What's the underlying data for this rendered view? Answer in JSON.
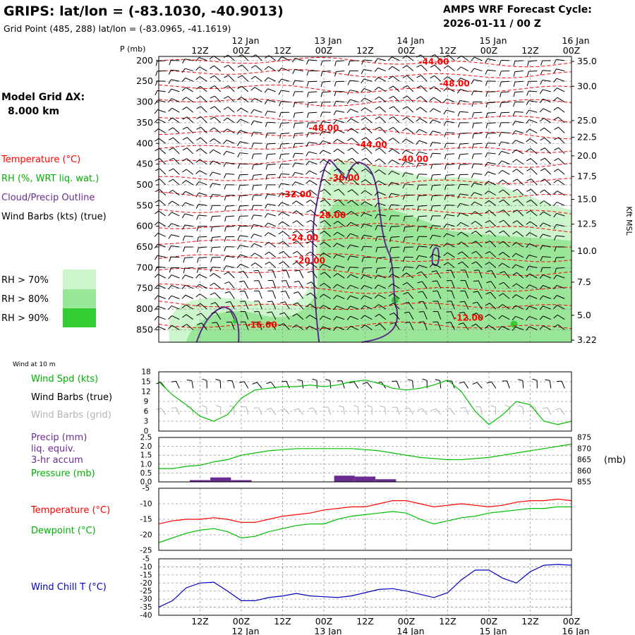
{
  "header": {
    "title": "GRIPS:  lat/lon = (-83.1030, -40.9013)",
    "subtitle": "Grid Point (485, 288) lat/lon = (-83.0965, -41.1619)",
    "forecast_label": "AMPS WRF Forecast Cycle:",
    "forecast_cycle": "2026-01-11 / 00  Z"
  },
  "model_grid": {
    "label": "Model Grid ΔX:",
    "value": "8.000 km"
  },
  "time_axis": {
    "ticks": [
      {
        "t": 18,
        "hour": "12Z",
        "day": ""
      },
      {
        "t": 24,
        "hour": "00Z",
        "day": "12 Jan"
      },
      {
        "t": 30,
        "hour": "12Z",
        "day": ""
      },
      {
        "t": 36,
        "hour": "00Z",
        "day": "13 Jan"
      },
      {
        "t": 42,
        "hour": "12Z",
        "day": ""
      },
      {
        "t": 48,
        "hour": "00Z",
        "day": "14 Jan"
      },
      {
        "t": 54,
        "hour": "12Z",
        "day": ""
      },
      {
        "t": 60,
        "hour": "00Z",
        "day": "15 Jan"
      },
      {
        "t": 66,
        "hour": "12Z",
        "day": ""
      },
      {
        "t": 72,
        "hour": "00Z",
        "day": "16 Jan"
      }
    ],
    "range": [
      12,
      72
    ]
  },
  "legend": {
    "temperature": "Temperature (°C)",
    "rh": "RH (%, WRT liq. wat.)",
    "cloud": "Cloud/Precip Outline",
    "wind_barbs": "Wind Barbs (kts) (true)",
    "rh_bins": [
      {
        "label": "RH > 70%",
        "color": "#ccf5cc"
      },
      {
        "label": "RH > 80%",
        "color": "#99e699"
      },
      {
        "label": "RH > 90%",
        "color": "#33cc33"
      }
    ]
  },
  "colors": {
    "temperature": "#ff0000",
    "dewpoint": "#00c000",
    "windspeed": "#00c000",
    "pressure": "#00c000",
    "precip": "#6a2c91",
    "cloud": "#5a2d8c",
    "windchill": "#0000c0",
    "grid_barbs": "#b4b4b4"
  },
  "chart_data": [
    {
      "type": "heatmap",
      "title": "Vertical cross-section",
      "ylabel": "P (mb)",
      "yticks": [
        200,
        250,
        300,
        350,
        400,
        450,
        500,
        550,
        600,
        650,
        700,
        750,
        800,
        850
      ],
      "ylim": [
        880,
        190
      ],
      "right_axis_label": "Kft MSL",
      "right_ticks": [
        {
          "label": "35.0",
          "p": 202
        },
        {
          "label": "30.0",
          "p": 262
        },
        {
          "label": "25.0",
          "p": 345
        },
        {
          "label": "22.5",
          "p": 385
        },
        {
          "label": "20.0",
          "p": 430
        },
        {
          "label": "17.5",
          "p": 480
        },
        {
          "label": "15.0",
          "p": 535
        },
        {
          "label": "12.5",
          "p": 595
        },
        {
          "label": "10.0",
          "p": 660
        },
        {
          "label": "7.5",
          "p": 735
        },
        {
          "label": "5.0",
          "p": 815
        },
        {
          "label": "3.22",
          "p": 875
        }
      ],
      "temperature_labels": [
        {
          "text": "-44.00",
          "t": 52,
          "p": 210
        },
        {
          "text": "-48.00",
          "t": 55,
          "p": 262
        },
        {
          "text": "-48.00",
          "t": 36,
          "p": 370
        },
        {
          "text": "-44.00",
          "t": 43,
          "p": 410
        },
        {
          "text": "-40.00",
          "t": 49,
          "p": 445
        },
        {
          "text": "-36.00",
          "t": 39,
          "p": 490
        },
        {
          "text": "-32.00",
          "t": 32,
          "p": 530
        },
        {
          "text": "-28.00",
          "t": 37,
          "p": 580
        },
        {
          "text": "-24.00",
          "t": 33,
          "p": 635
        },
        {
          "text": "-20.00",
          "t": 34,
          "p": 690
        },
        {
          "text": "-16.00",
          "t": 27,
          "p": 845
        },
        {
          "text": "-12.00",
          "t": 57,
          "p": 828
        }
      ],
      "isotherm_levels": [
        203,
        232,
        268,
        300,
        338,
        375,
        410,
        448,
        490,
        528,
        565,
        602,
        638,
        676,
        712,
        752,
        792,
        840
      ]
    },
    {
      "type": "line",
      "title": "Wind Spd (kts)",
      "note": "Wind at 10 m",
      "ylim": [
        0,
        18
      ],
      "yticks": [
        0,
        3,
        6,
        9,
        12,
        15,
        18
      ],
      "series": [
        {
          "name": "Wind Spd (kts)",
          "x": [
            12,
            14,
            16,
            18,
            20,
            22,
            24,
            26,
            28,
            30,
            32,
            34,
            36,
            38,
            40,
            42,
            44,
            46,
            48,
            50,
            52,
            54,
            56,
            58,
            60,
            62,
            64,
            66,
            68,
            70,
            72
          ],
          "values": [
            15,
            11,
            8,
            4.5,
            3,
            5,
            10,
            12.5,
            13,
            13.5,
            13.5,
            14,
            13.5,
            14,
            15,
            15.5,
            14.5,
            13,
            12.5,
            13,
            14,
            15.5,
            12,
            6,
            2,
            5,
            9,
            8,
            3,
            2,
            3
          ]
        }
      ],
      "labels": [
        "Wind Spd (kts)",
        "Wind Barbs (true)",
        "Wind Barbs (grid)"
      ]
    },
    {
      "type": "bar",
      "title": "Precip (mm) / Pressure (mb)",
      "labels": [
        "Precip (mm)",
        "liq. equiv.",
        "3-hr accum",
        "Pressure (mb)"
      ],
      "ylim_left": [
        0,
        2.5
      ],
      "yticks_left": [
        "0.0",
        "0.5",
        "1.0",
        "1.5",
        "2.0",
        "2.5"
      ],
      "ylim_right": [
        855,
        875
      ],
      "yticks_right": [
        "855",
        "860",
        "865",
        "870",
        "875"
      ],
      "right_unit": "(mb)",
      "precip": {
        "x": [
          18,
          21,
          24,
          39,
          42,
          45
        ],
        "values": [
          0.1,
          0.25,
          0.1,
          0.35,
          0.3,
          0.15
        ]
      },
      "pressure": {
        "x": [
          12,
          14,
          16,
          18,
          20,
          22,
          24,
          26,
          28,
          30,
          32,
          34,
          36,
          38,
          40,
          42,
          44,
          46,
          48,
          50,
          52,
          54,
          56,
          58,
          60,
          62,
          64,
          66,
          68,
          70,
          72
        ],
        "values": [
          861,
          861,
          862,
          862.5,
          864,
          865,
          867,
          868,
          869,
          869.5,
          870,
          870,
          870,
          870,
          870,
          869.5,
          869,
          868,
          867,
          866,
          865.5,
          865,
          865,
          865.5,
          866,
          867,
          868,
          869,
          870,
          871,
          872
        ]
      }
    },
    {
      "type": "line",
      "title": "Temperature / Dewpoint (°C)",
      "ylim": [
        -25,
        -5
      ],
      "yticks": [
        "-5",
        "-10",
        "-15",
        "-20",
        "-25"
      ],
      "series": [
        {
          "name": "Temperature (°C)",
          "x": [
            12,
            14,
            16,
            18,
            20,
            22,
            24,
            26,
            28,
            30,
            32,
            34,
            36,
            38,
            40,
            42,
            44,
            46,
            48,
            50,
            52,
            54,
            56,
            58,
            60,
            62,
            64,
            66,
            68,
            70,
            72
          ],
          "values": [
            -16.5,
            -15.5,
            -15,
            -15,
            -14.5,
            -15,
            -16,
            -16,
            -15,
            -14,
            -13.5,
            -13,
            -12,
            -11.5,
            -11,
            -11,
            -10,
            -9,
            -9,
            -10,
            -11,
            -10.5,
            -10,
            -10.5,
            -11,
            -10.5,
            -9.5,
            -9,
            -9,
            -8.5,
            -9
          ]
        },
        {
          "name": "Dewpoint (°C)",
          "x": [
            12,
            14,
            16,
            18,
            20,
            22,
            24,
            26,
            28,
            30,
            32,
            34,
            36,
            38,
            40,
            42,
            44,
            46,
            48,
            50,
            52,
            54,
            56,
            58,
            60,
            62,
            64,
            66,
            68,
            70,
            72
          ],
          "values": [
            -22.5,
            -21,
            -19.5,
            -18.5,
            -18,
            -19,
            -21,
            -20.5,
            -19,
            -18,
            -17,
            -16.5,
            -16.5,
            -15,
            -14,
            -13.5,
            -13,
            -12.5,
            -13,
            -15,
            -16.5,
            -15.5,
            -14.5,
            -14,
            -13,
            -12.5,
            -12,
            -11.5,
            -11.5,
            -11,
            -11
          ]
        }
      ],
      "labels": [
        "Temperature (°C)",
        "Dewpoint (°C)"
      ]
    },
    {
      "type": "line",
      "title": "Wind Chill T (°C)",
      "ylim": [
        -40,
        -5
      ],
      "yticks": [
        "-5",
        "-10",
        "-15",
        "-20",
        "-25",
        "-30",
        "-35",
        "-40"
      ],
      "series": [
        {
          "name": "Wind Chill T (°C)",
          "x": [
            12,
            14,
            16,
            18,
            20,
            22,
            24,
            26,
            28,
            30,
            32,
            34,
            36,
            38,
            40,
            42,
            44,
            46,
            48,
            50,
            52,
            54,
            56,
            58,
            60,
            62,
            64,
            66,
            68,
            70,
            72
          ],
          "values": [
            -35,
            -31,
            -23,
            -20,
            -19.5,
            -25,
            -31,
            -31,
            -29,
            -28,
            -26.5,
            -28,
            -28.5,
            -29,
            -28,
            -26,
            -24,
            -23.5,
            -25,
            -27,
            -29,
            -26,
            -18,
            -12,
            -12,
            -17,
            -20,
            -13,
            -9,
            -8.5,
            -9
          ]
        }
      ],
      "labels": [
        "Wind Chill T (°C)"
      ]
    }
  ]
}
